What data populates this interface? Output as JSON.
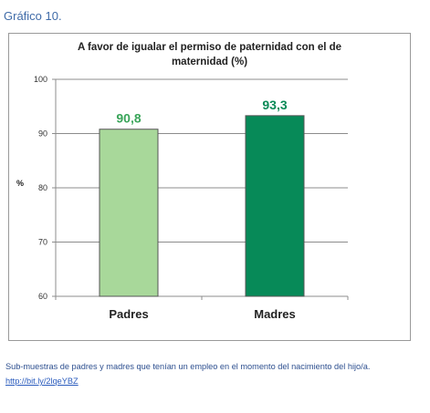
{
  "heading": "Gráfico 10.",
  "chart_data": {
    "type": "bar",
    "title_lines": [
      "A favor de igualar el permiso de paternidad con el de",
      "maternidad (%)"
    ],
    "ylabel": "%",
    "xlabel": "",
    "ylim": [
      60,
      100
    ],
    "yticks": [
      60,
      70,
      80,
      90,
      100
    ],
    "grid": true,
    "categories": [
      "Padres",
      "Madres"
    ],
    "values": [
      90.8,
      93.3
    ],
    "value_labels": [
      "90,8",
      "93,3"
    ],
    "colors": [
      "#a8d89a",
      "#078a58"
    ],
    "label_colors": [
      "#3aa55a",
      "#0b8a57"
    ]
  },
  "caption": "Sub-muestras de padres y madres que tenían un empleo en el momento del nacimiento del hijo/a.",
  "link": "http://bit.ly/2lqeYBZ"
}
